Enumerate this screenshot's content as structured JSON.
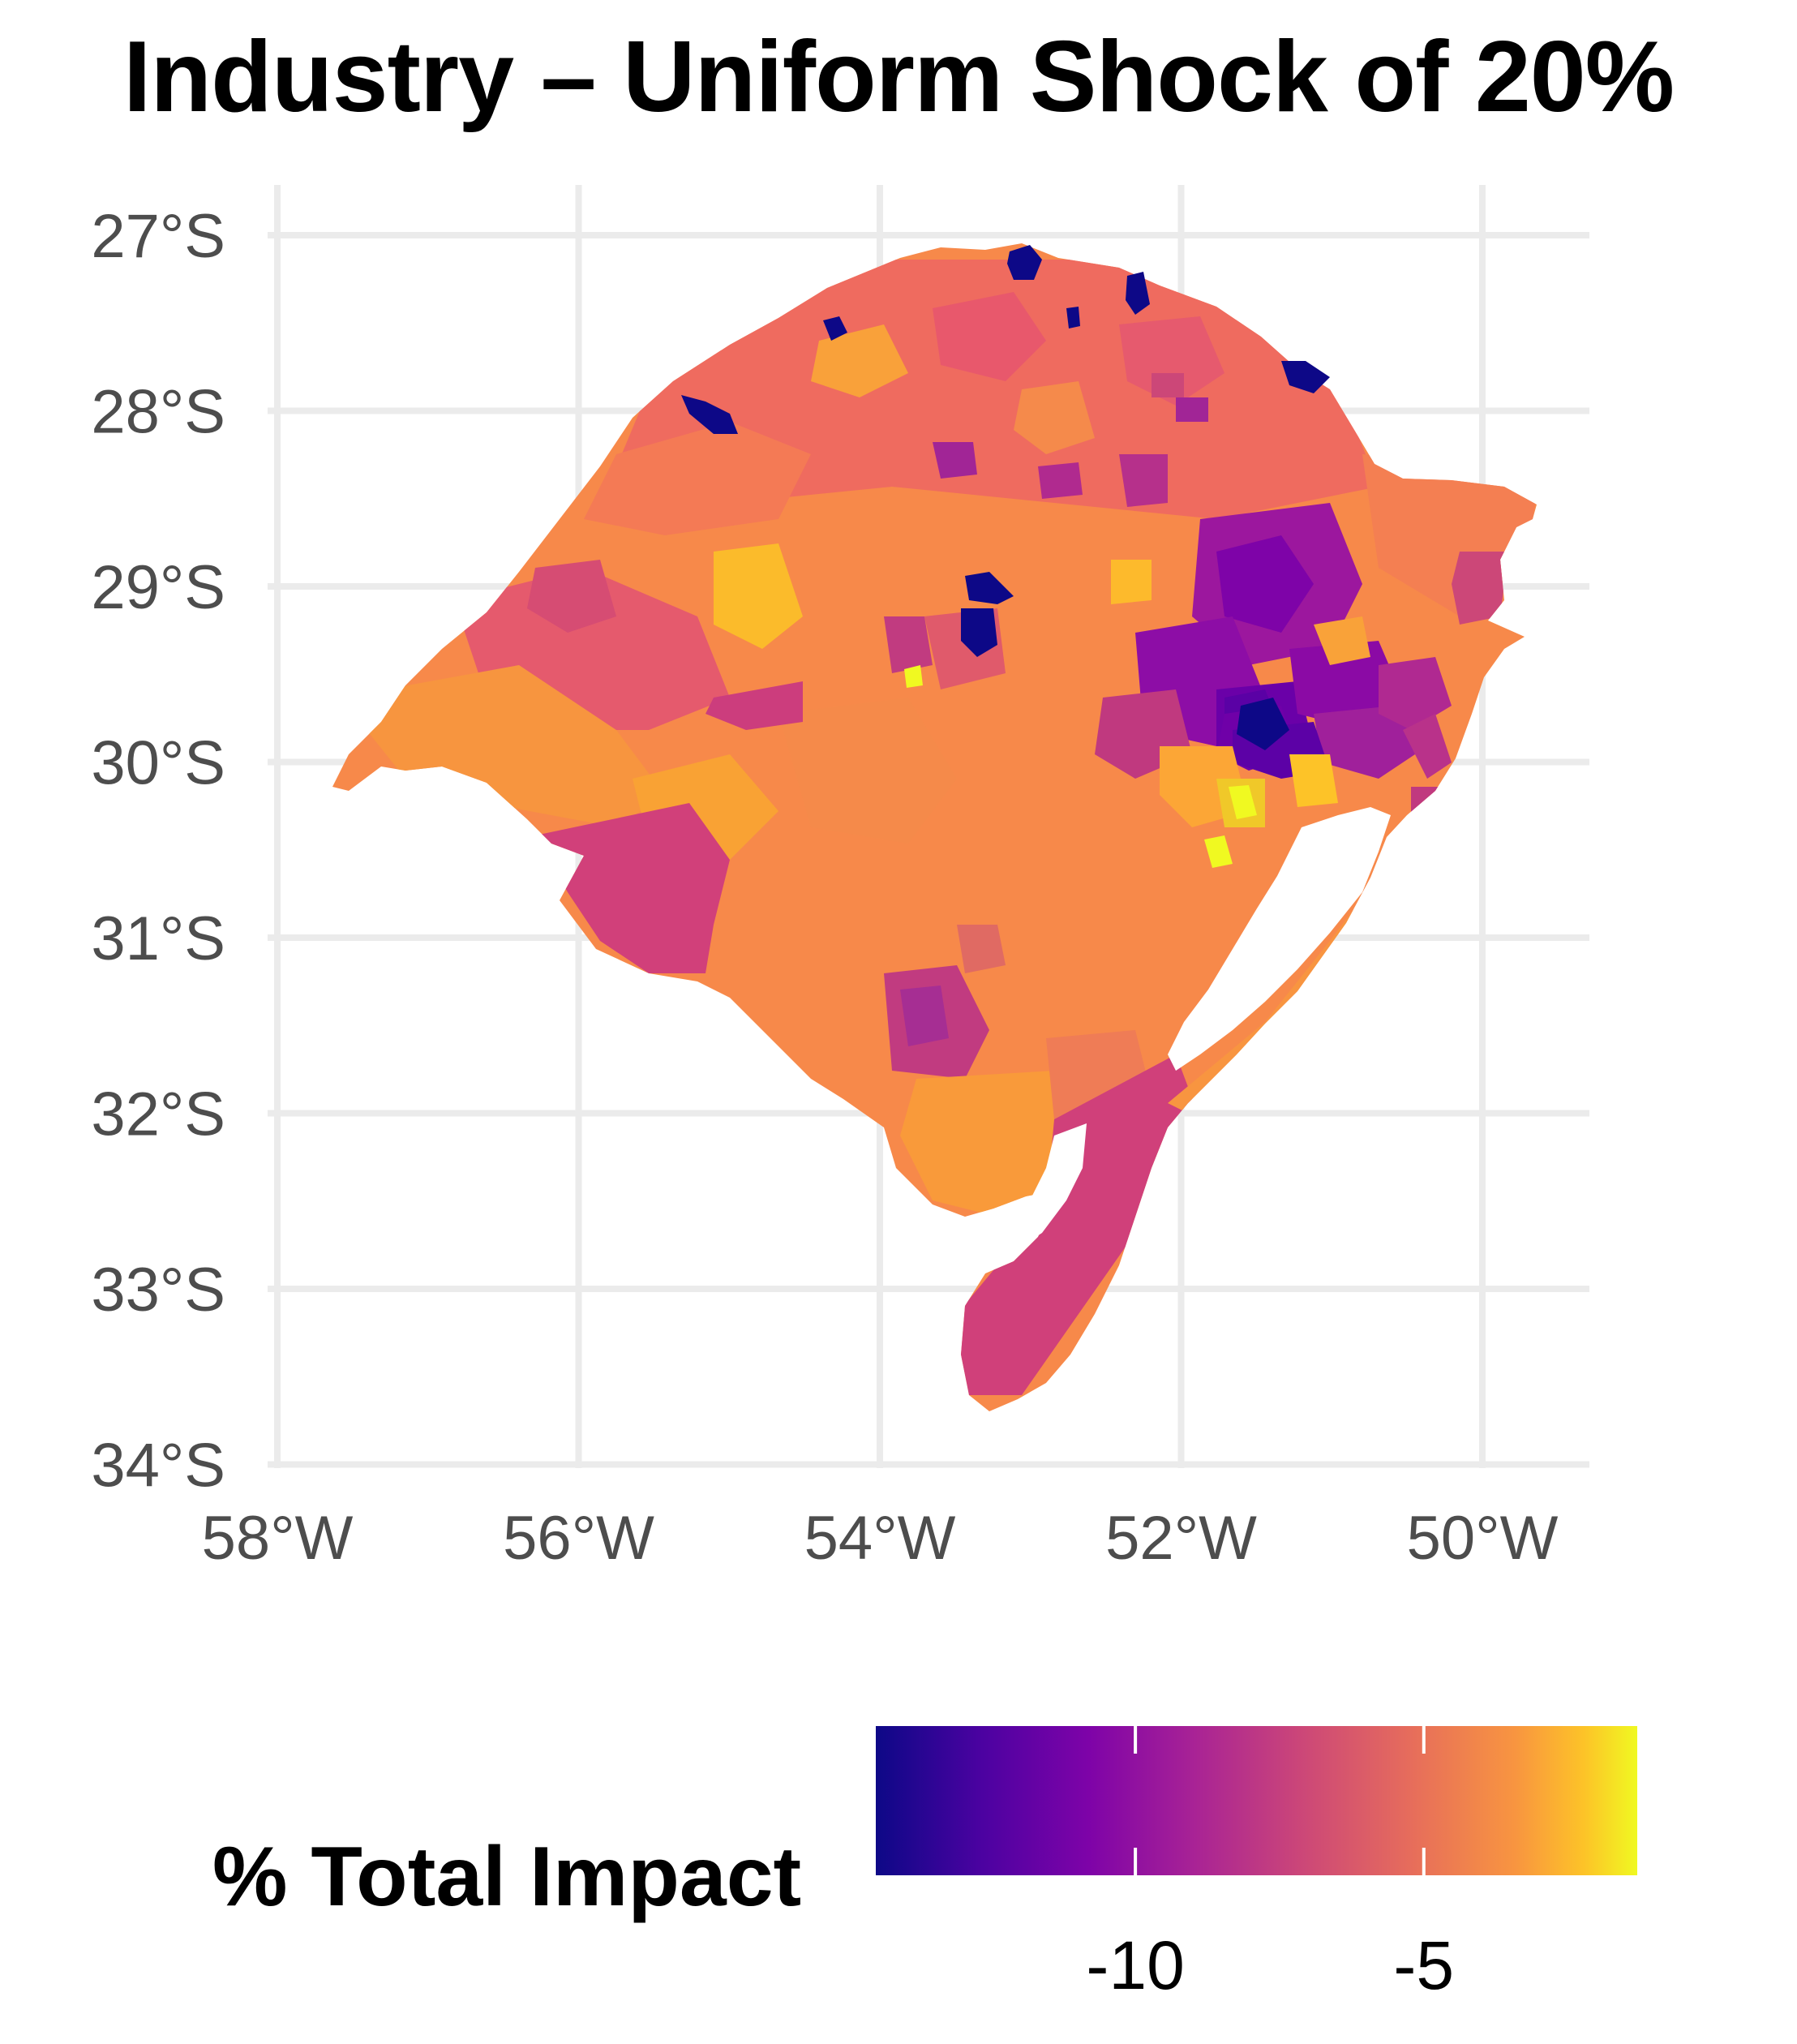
{
  "title": "Industry – Uniform Shock of 20%",
  "axes": {
    "y_ticks": [
      "27°S",
      "28°S",
      "29°S",
      "30°S",
      "31°S",
      "32°S",
      "33°S",
      "34°S"
    ],
    "x_ticks": [
      "58°W",
      "56°W",
      "54°W",
      "52°W",
      "50°W"
    ]
  },
  "legend": {
    "title": "% Total Impact",
    "colormap": "plasma",
    "range": [
      -14.5,
      -1.3
    ],
    "ticks": [
      {
        "value": -10,
        "label": "-10"
      },
      {
        "value": -5,
        "label": "-5"
      }
    ]
  },
  "colors": {
    "lowest": "#0d0887",
    "purple": "#7e03a8",
    "magenta": "#cc4778",
    "pink": "#e65a6e",
    "orange": "#f89540",
    "highest": "#f0f921",
    "grid": "#ebebeb"
  }
}
